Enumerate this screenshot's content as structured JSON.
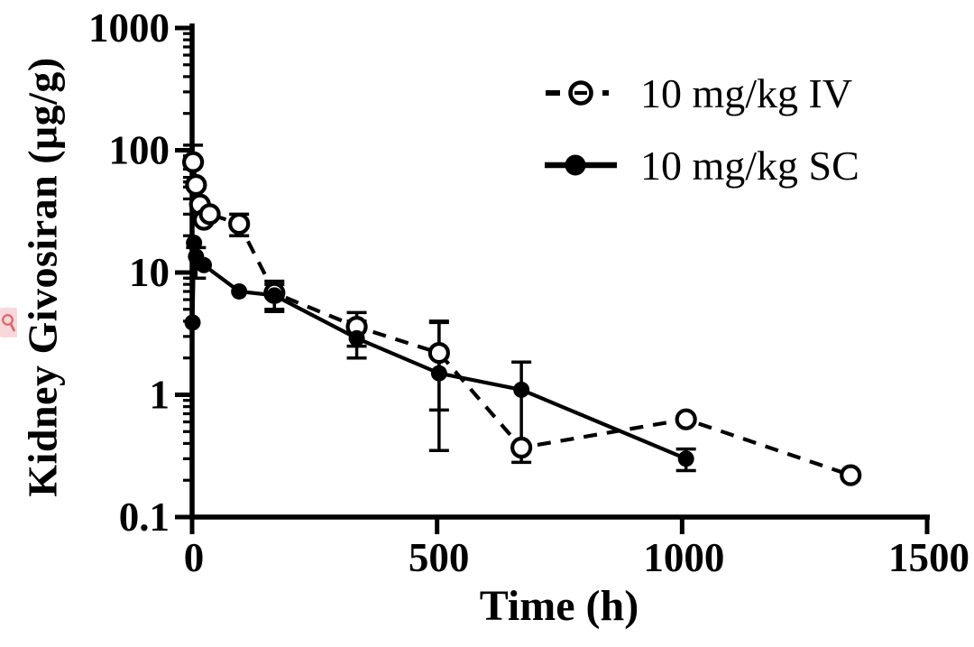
{
  "figure": {
    "background_color": "#ffffff",
    "ink_color": "#000000"
  },
  "watermark": {
    "icon": "magnifier-icon",
    "badge_color": "#f2a8b2",
    "icon_color": "#d96b6b"
  },
  "chart_data": {
    "type": "line",
    "title": "",
    "xlabel": "Time (h)",
    "ylabel": "Kidney Givosiran (μg/g)",
    "x_scale": "linear",
    "y_scale": "log",
    "xlim": [
      0,
      1500
    ],
    "ylim": [
      0.1,
      1000
    ],
    "grid": false,
    "legend_position": "upper-right",
    "x_ticks": [
      {
        "value": 0,
        "label": "0"
      },
      {
        "value": 500,
        "label": "500"
      },
      {
        "value": 1000,
        "label": "1000"
      },
      {
        "value": 1500,
        "label": "1500"
      }
    ],
    "y_ticks": [
      {
        "value": 1000,
        "label": "1000"
      },
      {
        "value": 100,
        "label": "100"
      },
      {
        "value": 10,
        "label": "10"
      },
      {
        "value": 1,
        "label": "1"
      },
      {
        "value": 0.1,
        "label": "0.1"
      }
    ],
    "series": [
      {
        "name": "10 mg/kg IV",
        "marker": "open-circle",
        "line_style": "dashed",
        "color": "#000000",
        "points": [
          {
            "t": 2,
            "y": 80,
            "err_lo": 55,
            "err_hi": 110
          },
          {
            "t": 8,
            "y": 52
          },
          {
            "t": 16,
            "y": 36
          },
          {
            "t": 24,
            "y": 27
          },
          {
            "t": 36,
            "y": 30
          },
          {
            "t": 96,
            "y": 25,
            "err_lo": 20,
            "err_hi": 30
          },
          {
            "t": 168,
            "y": 6.8,
            "err_lo": 5.0,
            "err_hi": 8.5
          },
          {
            "t": 336,
            "y": 3.6,
            "err_lo": 2.5,
            "err_hi": 4.7
          },
          {
            "t": 504,
            "y": 2.2,
            "err_lo": 0.75,
            "err_hi": 3.9
          },
          {
            "t": 672,
            "y": 0.37
          },
          {
            "t": 1008,
            "y": 0.63
          },
          {
            "t": 1344,
            "y": 0.22
          }
        ]
      },
      {
        "name": "10 mg/kg SC",
        "marker": "filled-circle",
        "line_style": "solid",
        "color": "#000000",
        "points": [
          {
            "t": 1,
            "y": 3.9
          },
          {
            "t": 4,
            "y": 17.5
          },
          {
            "t": 8,
            "y": 13.5,
            "err_lo": 9,
            "err_hi": 16
          },
          {
            "t": 24,
            "y": 11.5
          },
          {
            "t": 96,
            "y": 7.0
          },
          {
            "t": 168,
            "y": 6.5,
            "err_lo": 4.8,
            "err_hi": 8.0
          },
          {
            "t": 336,
            "y": 2.9,
            "err_lo": 2.0,
            "err_hi": 4.0
          },
          {
            "t": 504,
            "y": 1.5,
            "err_lo": 0.35,
            "err_hi": 4.0
          },
          {
            "t": 672,
            "y": 1.1,
            "err_lo": 0.28,
            "err_hi": 1.85
          },
          {
            "t": 1008,
            "y": 0.3,
            "err_lo": 0.24,
            "err_hi": 0.36
          }
        ]
      }
    ]
  }
}
